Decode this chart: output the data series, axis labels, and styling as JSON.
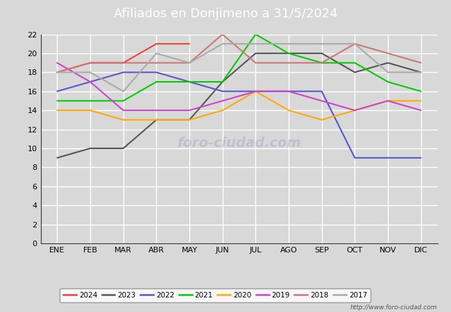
{
  "title": "Afiliados en Donjimeno a 31/5/2024",
  "months": [
    "ENE",
    "FEB",
    "MAR",
    "ABR",
    "MAY",
    "JUN",
    "JUL",
    "AGO",
    "SEP",
    "OCT",
    "NOV",
    "DIC"
  ],
  "series": [
    {
      "year": "2024",
      "color": "#e8433a",
      "data": [
        18,
        19,
        19,
        21,
        21,
        null,
        null,
        null,
        null,
        null,
        null,
        null
      ]
    },
    {
      "year": "2023",
      "color": "#555555",
      "data": [
        9,
        10,
        10,
        13,
        13,
        17,
        20,
        20,
        20,
        18,
        19,
        18
      ]
    },
    {
      "year": "2022",
      "color": "#5555cc",
      "data": [
        16,
        17,
        18,
        18,
        17,
        16,
        16,
        16,
        16,
        9,
        9,
        9
      ]
    },
    {
      "year": "2021",
      "color": "#00cc00",
      "data": [
        15,
        15,
        15,
        17,
        17,
        17,
        22,
        20,
        19,
        19,
        17,
        16
      ]
    },
    {
      "year": "2020",
      "color": "#ffaa00",
      "data": [
        14,
        14,
        13,
        13,
        13,
        14,
        16,
        14,
        13,
        14,
        15,
        15
      ]
    },
    {
      "year": "2019",
      "color": "#cc44cc",
      "data": [
        19,
        17,
        14,
        14,
        14,
        15,
        16,
        16,
        15,
        14,
        15,
        14
      ]
    },
    {
      "year": "2018",
      "color": "#cc7777",
      "data": [
        18,
        19,
        19,
        19,
        19,
        22,
        19,
        19,
        19,
        21,
        20,
        19
      ]
    },
    {
      "year": "2017",
      "color": "#aaaaaa",
      "data": [
        18,
        18,
        16,
        20,
        19,
        21,
        21,
        21,
        21,
        21,
        18,
        18
      ]
    }
  ],
  "ylim": [
    0,
    22
  ],
  "yticks": [
    0,
    2,
    4,
    6,
    8,
    10,
    12,
    14,
    16,
    18,
    20,
    22
  ],
  "background_color": "#d8d8d8",
  "plot_bg_color": "#d8d8d8",
  "title_bg_color": "#4f86c0",
  "title_color": "#ffffff",
  "grid_color": "#ffffff",
  "footer_text": "http://www.foro-ciudad.com",
  "watermark_text": "foro-ciudad.com",
  "title_fontsize": 13,
  "tick_fontsize": 8,
  "legend_fontsize": 7.5
}
